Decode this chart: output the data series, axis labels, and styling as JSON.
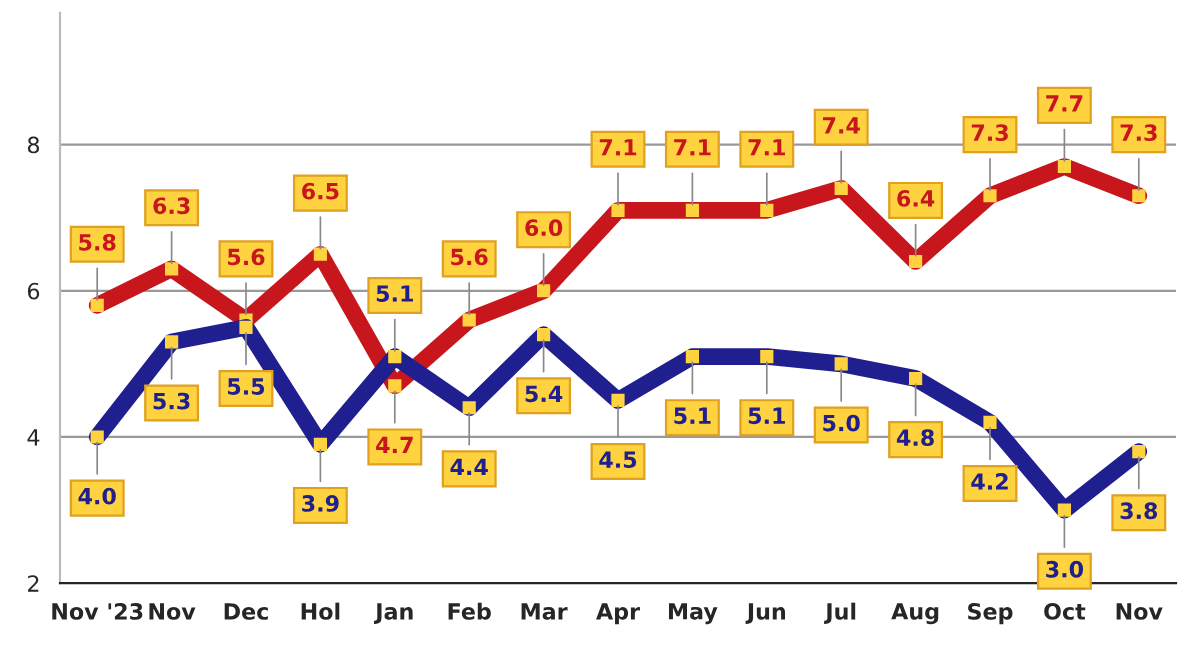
{
  "chart_data": {
    "type": "line",
    "categories": [
      "Nov '23",
      "Nov",
      "Dec",
      "Hol",
      "Jan",
      "Feb",
      "Mar",
      "Apr",
      "May",
      "Jun",
      "Jul",
      "Aug",
      "Sep",
      "Oct",
      "Nov"
    ],
    "series": [
      {
        "color": "#c8161d",
        "values": [
          5.8,
          6.3,
          5.6,
          6.5,
          4.7,
          5.6,
          6.0,
          7.1,
          7.1,
          7.1,
          7.4,
          6.4,
          7.3,
          7.7,
          7.3
        ],
        "value_labels": [
          "5.8",
          "6.3",
          "5.6",
          "6.5",
          "4.7",
          "5.6",
          "6.0",
          "7.1",
          "7.1",
          "7.1",
          "7.4",
          "6.4",
          "7.3",
          "7.7",
          "7.3"
        ]
      },
      {
        "color": "#1f1f8f",
        "values": [
          4.0,
          5.3,
          5.5,
          3.9,
          5.1,
          4.4,
          5.4,
          4.5,
          5.1,
          5.1,
          5.0,
          4.8,
          4.2,
          3.0,
          3.8
        ],
        "value_labels": [
          "4.0",
          "5.3",
          "5.5",
          "3.9",
          "5.1",
          "4.4",
          "5.4",
          "4.5",
          "5.1",
          "5.1",
          "5.0",
          "4.8",
          "4.2",
          "3.0",
          "3.8"
        ]
      }
    ],
    "ylim": [
      2,
      9.8
    ],
    "yticks": [
      2,
      4,
      6,
      8
    ],
    "grid": "y",
    "marker": "square",
    "line_style": "solid",
    "legend": false
  }
}
